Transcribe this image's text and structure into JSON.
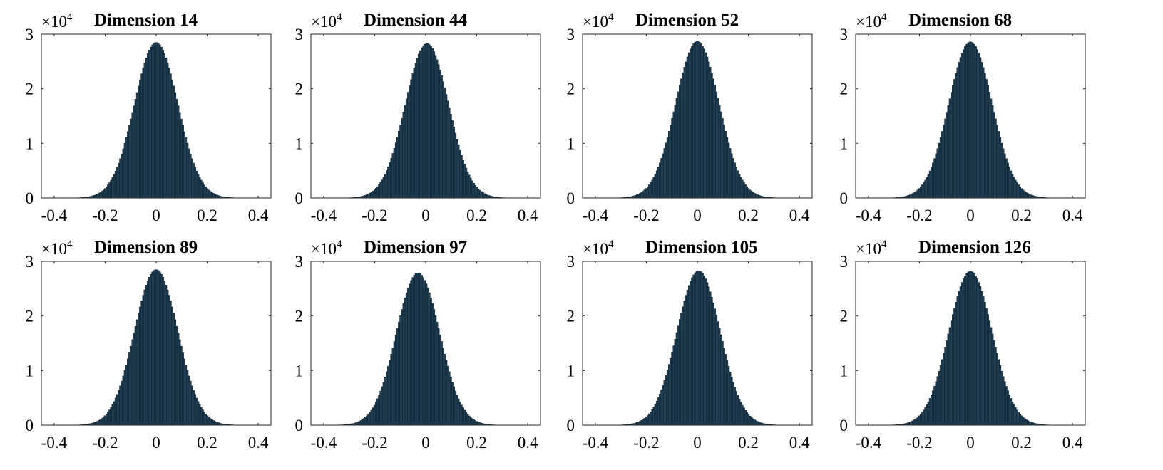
{
  "chart_data": [
    {
      "type": "bar",
      "title": "Dimension 14",
      "scale": {
        "base": "×10",
        "exponent": "4"
      },
      "xticks": [
        "-0.4",
        "-0.2",
        "0",
        "0.2",
        "0.4"
      ],
      "yticks": [
        "0",
        "1",
        "2",
        "3"
      ],
      "xlim": [
        -0.45,
        0.45
      ],
      "ylim": [
        0,
        30000
      ],
      "peak": 28500,
      "mean": 0.0,
      "sigma": 0.085,
      "bin_width": 0.006,
      "bar_color": "#1e3d52",
      "edge_color": "#0d1a24"
    },
    {
      "type": "bar",
      "title": "Dimension 44",
      "scale": {
        "base": "×10",
        "exponent": "4"
      },
      "xticks": [
        "-0.4",
        "-0.2",
        "0",
        "0.2",
        "0.4"
      ],
      "yticks": [
        "0",
        "1",
        "2",
        "3"
      ],
      "xlim": [
        -0.45,
        0.45
      ],
      "ylim": [
        0,
        30000
      ],
      "peak": 28300,
      "mean": 0.005,
      "sigma": 0.085,
      "bin_width": 0.006,
      "bar_color": "#1e3d52",
      "edge_color": "#0d1a24"
    },
    {
      "type": "bar",
      "title": "Dimension 52",
      "scale": {
        "base": "×10",
        "exponent": "4"
      },
      "xticks": [
        "-0.4",
        "-0.2",
        "0",
        "0.2",
        "0.4"
      ],
      "yticks": [
        "0",
        "1",
        "2",
        "3"
      ],
      "xlim": [
        -0.45,
        0.45
      ],
      "ylim": [
        0,
        30000
      ],
      "peak": 28700,
      "mean": 0.0,
      "sigma": 0.085,
      "bin_width": 0.006,
      "bar_color": "#1e3d52",
      "edge_color": "#0d1a24"
    },
    {
      "type": "bar",
      "title": "Dimension 68",
      "scale": {
        "base": "×10",
        "exponent": "4"
      },
      "xticks": [
        "-0.4",
        "-0.2",
        "0",
        "0.2",
        "0.4"
      ],
      "yticks": [
        "0",
        "1",
        "2",
        "3"
      ],
      "xlim": [
        -0.45,
        0.45
      ],
      "ylim": [
        0,
        30000
      ],
      "peak": 28600,
      "mean": 0.0,
      "sigma": 0.085,
      "bin_width": 0.006,
      "bar_color": "#1e3d52",
      "edge_color": "#0d1a24"
    },
    {
      "type": "bar",
      "title": "Dimension 89",
      "scale": {
        "base": "×10",
        "exponent": "4"
      },
      "xticks": [
        "-0.4",
        "-0.2",
        "0",
        "0.2",
        "0.4"
      ],
      "yticks": [
        "0",
        "1",
        "2",
        "3"
      ],
      "xlim": [
        -0.45,
        0.45
      ],
      "ylim": [
        0,
        30000
      ],
      "peak": 28500,
      "mean": 0.0,
      "sigma": 0.085,
      "bin_width": 0.006,
      "bar_color": "#1e3d52",
      "edge_color": "#0d1a24"
    },
    {
      "type": "bar",
      "title": "Dimension 97",
      "scale": {
        "base": "×10",
        "exponent": "4"
      },
      "xticks": [
        "-0.4",
        "-0.2",
        "0",
        "0.2",
        "0.4"
      ],
      "yticks": [
        "0",
        "1",
        "2",
        "3"
      ],
      "xlim": [
        -0.45,
        0.45
      ],
      "ylim": [
        0,
        30000
      ],
      "peak": 27900,
      "mean": -0.03,
      "sigma": 0.085,
      "bin_width": 0.006,
      "bar_color": "#1e3d52",
      "edge_color": "#0d1a24"
    },
    {
      "type": "bar",
      "title": "Dimension 105",
      "scale": {
        "base": "×10",
        "exponent": "4"
      },
      "xticks": [
        "-0.4",
        "-0.2",
        "0",
        "0.2",
        "0.4"
      ],
      "yticks": [
        "0",
        "1",
        "2",
        "3"
      ],
      "xlim": [
        -0.45,
        0.45
      ],
      "ylim": [
        0,
        30000
      ],
      "peak": 28300,
      "mean": 0.005,
      "sigma": 0.085,
      "bin_width": 0.006,
      "bar_color": "#1e3d52",
      "edge_color": "#0d1a24"
    },
    {
      "type": "bar",
      "title": "Dimension 126",
      "scale": {
        "base": "×10",
        "exponent": "4"
      },
      "xticks": [
        "-0.4",
        "-0.2",
        "0",
        "0.2",
        "0.4"
      ],
      "yticks": [
        "0",
        "1",
        "2",
        "3"
      ],
      "xlim": [
        -0.45,
        0.45
      ],
      "ylim": [
        0,
        30000
      ],
      "peak": 28200,
      "mean": 0.0,
      "sigma": 0.085,
      "bin_width": 0.006,
      "bar_color": "#1e3d52",
      "edge_color": "#0d1a24"
    }
  ]
}
